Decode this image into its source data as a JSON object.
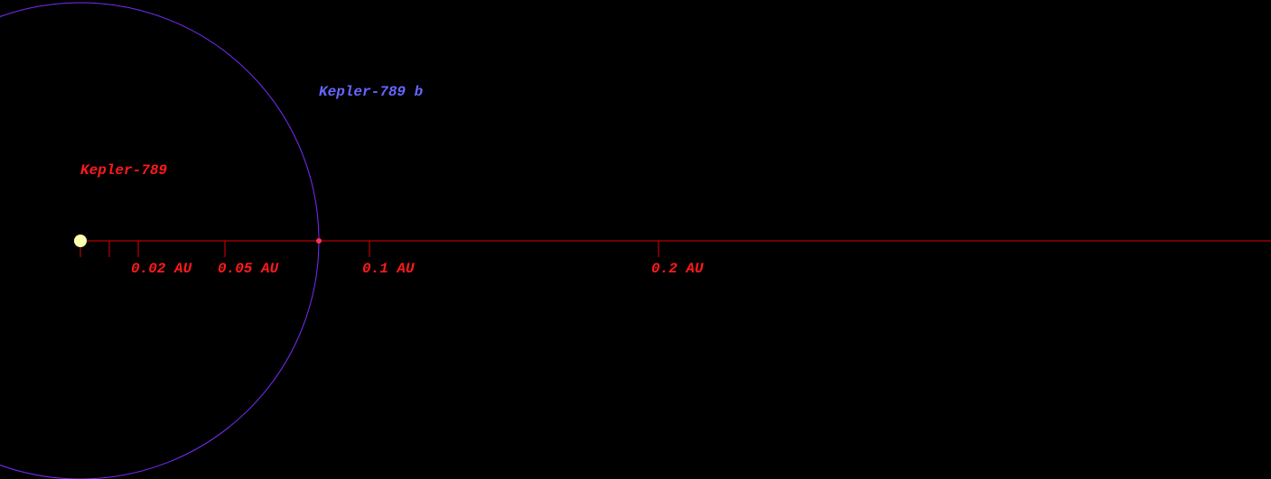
{
  "star": {
    "name": "Kepler-789"
  },
  "planet": {
    "name": "Kepler-789 b",
    "orbit_au": 0.0825
  },
  "scale": {
    "ticks": [
      {
        "value": 0,
        "label": null
      },
      {
        "value": 0.01,
        "label": null
      },
      {
        "value": 0.02,
        "label": "0.02 AU"
      },
      {
        "value": 0.05,
        "label": "0.05 AU"
      },
      {
        "value": 0.1,
        "label": "0.1 AU"
      },
      {
        "value": 0.2,
        "label": "0.2 AU"
      }
    ]
  }
}
